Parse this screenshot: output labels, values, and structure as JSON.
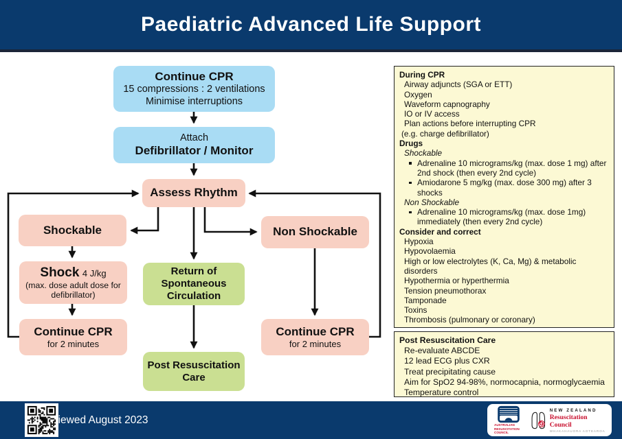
{
  "colors": {
    "navy": "#0a3a6d",
    "box_blue": "#a9dcf4",
    "box_pink": "#f8d0c3",
    "box_green": "#cadf92",
    "panel_yellow": "#fcf9d4",
    "accent_red": "#c8102e"
  },
  "header": {
    "title": "Paediatric Advanced Life Support"
  },
  "flowchart": {
    "continue_cpr_top": {
      "title": "Continue CPR",
      "line1": "15 compressions : 2 ventilations",
      "line2": "Minimise interruptions"
    },
    "attach": {
      "line1": "Attach",
      "title": "Defibrillator / Monitor"
    },
    "assess_rhythm": {
      "title": "Assess Rhythm"
    },
    "shockable": {
      "title": "Shockable"
    },
    "non_shockable": {
      "title": "Non Shockable"
    },
    "shock": {
      "title": "Shock",
      "dose": "4 J/kg",
      "note": "(max. dose adult dose for defibrillator)"
    },
    "continue_cpr_left": {
      "title": "Continue CPR",
      "sub": "for 2 minutes"
    },
    "rosc": {
      "title": "Return of Spontaneous Circulation"
    },
    "continue_cpr_right": {
      "title": "Continue CPR",
      "sub": "for 2 minutes"
    },
    "post_resus_care": {
      "title": "Post Resuscitation Care"
    }
  },
  "during_cpr_panel": {
    "heading": "During CPR",
    "items": [
      "Airway adjuncts (SGA or ETT)",
      "Oxygen",
      "Waveform capnography",
      "IO or IV access",
      "Plan actions before interrupting CPR",
      "(e.g. charge defibrillator)"
    ],
    "drugs_heading": "Drugs",
    "shockable_label": "Shockable",
    "shockable_bullets": [
      "Adrenaline 10 micrograms/kg (max. dose 1 mg) after 2nd shock (then every 2nd cycle)",
      "Amiodarone 5 mg/kg (max. dose 300 mg) after 3 shocks"
    ],
    "non_shockable_label": "Non Shockable",
    "non_shockable_bullets": [
      "Adrenaline 10 micrograms/kg (max. dose 1mg) immediately (then every 2nd cycle)"
    ],
    "consider_heading": "Consider and correct",
    "consider_items": [
      "Hypoxia",
      "Hypovolaemia",
      "High or low electrolytes (K, Ca, Mg) & metabolic disorders",
      "Hypothermia or hyperthermia",
      "Tension pneumothorax",
      "Tamponade",
      "Toxins",
      "Thrombosis (pulmonary or coronary)"
    ]
  },
  "post_resus_panel": {
    "heading": "Post Resuscitation Care",
    "items": [
      "Re-evaluate ABCDE",
      "12 lead ECG plus CXR",
      "Treat precipitating cause",
      "Aim for SpO2 94-98%, normocapnia, normoglycaemia",
      "Temperature control"
    ]
  },
  "footer": {
    "reviewed": "Reviewed August 2023",
    "arc_logo": {
      "line1": "AUSTRALIAN",
      "line2": "RESUSCITATION",
      "line3": "COUNCIL"
    },
    "nz_logo": {
      "line1": "NEW ZEALAND",
      "line2": "Resuscitation Council",
      "line3": "WHAKAHAUORA AOTEAROA"
    }
  }
}
